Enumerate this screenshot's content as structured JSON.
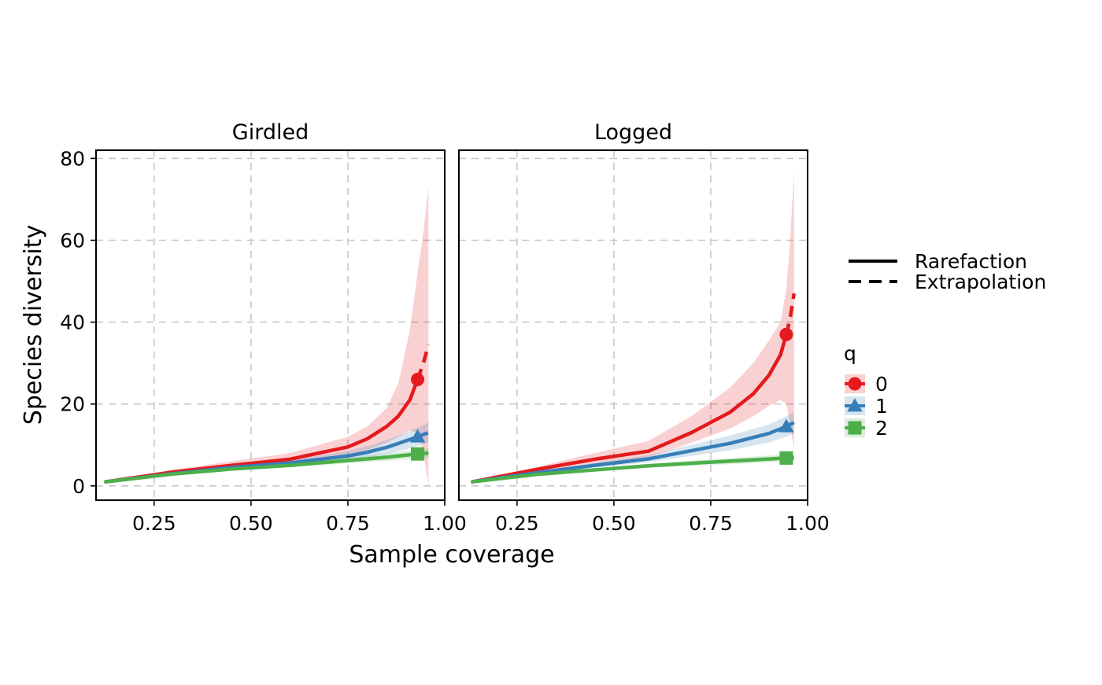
{
  "chart_data": {
    "type": "line",
    "facets": [
      "Girdled",
      "Logged"
    ],
    "xlabel": "Sample coverage",
    "ylabel": "Species diversity",
    "xlim": [
      0.1,
      1.0
    ],
    "ylim": [
      -3.5,
      82
    ],
    "x_ticks": [
      "0.25",
      "0.50",
      "0.75",
      "1.00"
    ],
    "x_tick_values": [
      0.25,
      0.5,
      0.75,
      1.0
    ],
    "y_ticks": [
      "0",
      "20",
      "40",
      "60",
      "80"
    ],
    "y_tick_values": [
      0,
      20,
      40,
      60,
      80
    ],
    "grid": true,
    "legend": {
      "position": "right",
      "linetype_entries": [
        {
          "label": "Rarefaction",
          "style": "solid"
        },
        {
          "label": "Extrapolation",
          "style": "dashed"
        }
      ],
      "q_title": "q",
      "q_entries": [
        {
          "label": "0",
          "color": "#e41a1c",
          "shape": "circle"
        },
        {
          "label": "1",
          "color": "#377eb8",
          "shape": "triangle"
        },
        {
          "label": "2",
          "color": "#4daf4a",
          "shape": "square"
        }
      ]
    },
    "panels": [
      {
        "facet": "Girdled",
        "series": [
          {
            "q": "0",
            "color": "#e41a1c",
            "rarefaction": [
              [
                0.125,
                1
              ],
              [
                0.3,
                3.4
              ],
              [
                0.45,
                5
              ],
              [
                0.6,
                6.5
              ],
              [
                0.75,
                9.5
              ],
              [
                0.8,
                11.5
              ],
              [
                0.85,
                14.5
              ],
              [
                0.88,
                17
              ],
              [
                0.91,
                21
              ],
              [
                0.93,
                26
              ]
            ],
            "extrapolation": [
              [
                0.93,
                26
              ],
              [
                0.945,
                30
              ],
              [
                0.958,
                34.5
              ]
            ],
            "observed": [
              0.93,
              26
            ],
            "band_upper": [
              [
                0.125,
                1
              ],
              [
                0.3,
                4
              ],
              [
                0.45,
                6
              ],
              [
                0.6,
                8
              ],
              [
                0.75,
                12
              ],
              [
                0.8,
                14.5
              ],
              [
                0.85,
                19
              ],
              [
                0.88,
                25
              ],
              [
                0.91,
                38
              ],
              [
                0.93,
                52
              ],
              [
                0.945,
                62
              ],
              [
                0.958,
                73
              ]
            ],
            "band_lower": [
              [
                0.125,
                1
              ],
              [
                0.3,
                3
              ],
              [
                0.45,
                4.2
              ],
              [
                0.6,
                5.3
              ],
              [
                0.75,
                7.3
              ],
              [
                0.8,
                8.7
              ],
              [
                0.85,
                10.5
              ],
              [
                0.88,
                12
              ],
              [
                0.91,
                13.5
              ],
              [
                0.93,
                13
              ],
              [
                0.945,
                8
              ],
              [
                0.958,
                0
              ]
            ]
          },
          {
            "q": "1",
            "color": "#377eb8",
            "rarefaction": [
              [
                0.125,
                1
              ],
              [
                0.3,
                3
              ],
              [
                0.45,
                4.5
              ],
              [
                0.6,
                5.6
              ],
              [
                0.75,
                7.3
              ],
              [
                0.8,
                8.2
              ],
              [
                0.85,
                9.4
              ],
              [
                0.9,
                11
              ],
              [
                0.93,
                12
              ]
            ],
            "extrapolation": [
              [
                0.93,
                12
              ],
              [
                0.958,
                13
              ]
            ],
            "observed": [
              0.93,
              12
            ],
            "band_upper": [
              [
                0.125,
                1
              ],
              [
                0.3,
                3.2
              ],
              [
                0.45,
                5
              ],
              [
                0.6,
                6.3
              ],
              [
                0.75,
                8.5
              ],
              [
                0.8,
                9.7
              ],
              [
                0.85,
                11.2
              ],
              [
                0.9,
                13
              ],
              [
                0.93,
                14.2
              ],
              [
                0.958,
                15.5
              ]
            ],
            "band_lower": [
              [
                0.125,
                1
              ],
              [
                0.3,
                2.8
              ],
              [
                0.45,
                4
              ],
              [
                0.6,
                5
              ],
              [
                0.75,
                6.2
              ],
              [
                0.8,
                6.9
              ],
              [
                0.85,
                7.7
              ],
              [
                0.9,
                8.9
              ],
              [
                0.93,
                9.8
              ],
              [
                0.958,
                10.5
              ]
            ]
          },
          {
            "q": "2",
            "color": "#4daf4a",
            "rarefaction": [
              [
                0.125,
                1
              ],
              [
                0.3,
                2.9
              ],
              [
                0.45,
                4.1
              ],
              [
                0.6,
                5
              ],
              [
                0.75,
                6.2
              ],
              [
                0.85,
                7
              ],
              [
                0.93,
                7.8
              ]
            ],
            "extrapolation": [
              [
                0.93,
                7.8
              ],
              [
                0.958,
                8
              ]
            ],
            "observed": [
              0.93,
              7.8
            ],
            "band_upper": [
              [
                0.125,
                1
              ],
              [
                0.3,
                3.1
              ],
              [
                0.45,
                4.5
              ],
              [
                0.6,
                5.5
              ],
              [
                0.75,
                6.9
              ],
              [
                0.85,
                7.9
              ],
              [
                0.93,
                8.8
              ],
              [
                0.958,
                9.2
              ]
            ],
            "band_lower": [
              [
                0.125,
                1
              ],
              [
                0.3,
                2.7
              ],
              [
                0.45,
                3.7
              ],
              [
                0.6,
                4.5
              ],
              [
                0.75,
                5.5
              ],
              [
                0.85,
                6.1
              ],
              [
                0.93,
                6.7
              ],
              [
                0.958,
                6.8
              ]
            ]
          }
        ]
      },
      {
        "facet": "Logged",
        "series": [
          {
            "q": "0",
            "color": "#e41a1c",
            "rarefaction": [
              [
                0.135,
                1
              ],
              [
                0.3,
                4
              ],
              [
                0.45,
                6.5
              ],
              [
                0.59,
                8.5
              ],
              [
                0.7,
                13
              ],
              [
                0.8,
                18
              ],
              [
                0.86,
                22.5
              ],
              [
                0.9,
                27
              ],
              [
                0.93,
                32
              ],
              [
                0.945,
                37
              ]
            ],
            "extrapolation": [
              [
                0.945,
                37
              ],
              [
                0.955,
                41
              ],
              [
                0.965,
                47
              ]
            ],
            "observed": [
              0.945,
              37
            ],
            "band_upper": [
              [
                0.135,
                1
              ],
              [
                0.3,
                4.6
              ],
              [
                0.45,
                8
              ],
              [
                0.59,
                11
              ],
              [
                0.7,
                17
              ],
              [
                0.8,
                24
              ],
              [
                0.86,
                30
              ],
              [
                0.9,
                35.5
              ],
              [
                0.93,
                40
              ],
              [
                0.945,
                48
              ],
              [
                0.955,
                60
              ],
              [
                0.965,
                77
              ]
            ],
            "band_lower": [
              [
                0.135,
                1
              ],
              [
                0.3,
                3.4
              ],
              [
                0.45,
                5.3
              ],
              [
                0.59,
                7
              ],
              [
                0.7,
                10.5
              ],
              [
                0.8,
                14
              ],
              [
                0.86,
                17
              ],
              [
                0.9,
                19.5
              ],
              [
                0.93,
                21
              ],
              [
                0.945,
                20
              ],
              [
                0.955,
                15
              ],
              [
                0.965,
                9
              ]
            ]
          },
          {
            "q": "1",
            "color": "#377eb8",
            "rarefaction": [
              [
                0.135,
                1
              ],
              [
                0.3,
                3.2
              ],
              [
                0.45,
                5
              ],
              [
                0.59,
                6.6
              ],
              [
                0.7,
                8.6
              ],
              [
                0.8,
                10.4
              ],
              [
                0.9,
                12.8
              ],
              [
                0.945,
                14.5
              ]
            ],
            "extrapolation": [
              [
                0.945,
                14.5
              ],
              [
                0.965,
                15.5
              ]
            ],
            "observed": [
              0.945,
              14.5
            ],
            "band_upper": [
              [
                0.135,
                1
              ],
              [
                0.3,
                3.5
              ],
              [
                0.45,
                5.6
              ],
              [
                0.59,
                7.5
              ],
              [
                0.7,
                10
              ],
              [
                0.8,
                12.3
              ],
              [
                0.9,
                15
              ],
              [
                0.945,
                17
              ],
              [
                0.965,
                18
              ]
            ],
            "band_lower": [
              [
                0.135,
                1
              ],
              [
                0.3,
                2.9
              ],
              [
                0.45,
                4.5
              ],
              [
                0.59,
                5.8
              ],
              [
                0.7,
                7.3
              ],
              [
                0.8,
                8.7
              ],
              [
                0.9,
                10.6
              ],
              [
                0.945,
                12
              ],
              [
                0.965,
                12.8
              ]
            ]
          },
          {
            "q": "2",
            "color": "#4daf4a",
            "rarefaction": [
              [
                0.135,
                1
              ],
              [
                0.3,
                2.8
              ],
              [
                0.45,
                3.9
              ],
              [
                0.59,
                4.9
              ],
              [
                0.75,
                5.8
              ],
              [
                0.85,
                6.3
              ],
              [
                0.945,
                6.8
              ]
            ],
            "extrapolation": [
              [
                0.945,
                6.8
              ],
              [
                0.965,
                6.9
              ]
            ],
            "observed": [
              0.945,
              6.8
            ],
            "band_upper": [
              [
                0.135,
                1
              ],
              [
                0.3,
                3
              ],
              [
                0.45,
                4.3
              ],
              [
                0.59,
                5.4
              ],
              [
                0.75,
                6.5
              ],
              [
                0.85,
                7.1
              ],
              [
                0.945,
                7.7
              ],
              [
                0.965,
                7.8
              ]
            ],
            "band_lower": [
              [
                0.135,
                1
              ],
              [
                0.3,
                2.6
              ],
              [
                0.45,
                3.5
              ],
              [
                0.59,
                4.4
              ],
              [
                0.75,
                5.1
              ],
              [
                0.85,
                5.5
              ],
              [
                0.945,
                5.9
              ],
              [
                0.965,
                6
              ]
            ]
          }
        ]
      }
    ]
  }
}
